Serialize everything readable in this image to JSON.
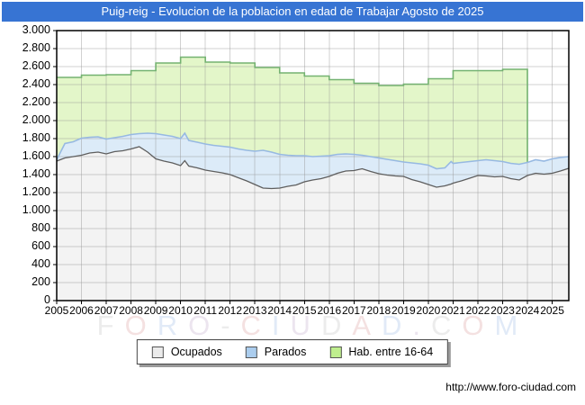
{
  "title_bar": {
    "text": "Puig-reig - Evolucion de la poblacion en edad de Trabajar Agosto de 2025",
    "bg": "#3774d3",
    "fg": "#ffffff"
  },
  "watermark": {
    "text": "FORO-CIUDAD.COM",
    "letter_colors": [
      "#ececec",
      "#f4e1e1",
      "#e1eaf7",
      "#ece5ef"
    ]
  },
  "footer": {
    "url": "http://www.foro-ciudad.com"
  },
  "legend": {
    "items": [
      {
        "label": "Ocupados",
        "swatch": "#ebebeb"
      },
      {
        "label": "Parados",
        "swatch": "#abcdee"
      },
      {
        "label": "Hab. entre 16-64",
        "swatch": "#bfee8e"
      }
    ]
  },
  "colors": {
    "grid": "rgba(145,145,145,0.42)",
    "plot_border": "#000000",
    "ocupados_fill": "#f3f3f3",
    "ocupados_line": "#5e5e5e",
    "parados_fill": "#dcebf8",
    "parados_line": "#97b9e2",
    "hab_fill": "#e3f6c9",
    "hab_line": "#74b271"
  },
  "chart_data": {
    "type": "area",
    "title": "Puig-reig - Evolucion de la poblacion en edad de Trabajar Agosto de 2025",
    "xlabel": "",
    "ylabel": "",
    "grid": true,
    "legend_position": "bottom",
    "x_axis": {
      "min": 2005,
      "max": 2025.67,
      "tick_years": [
        2005,
        2006,
        2007,
        2008,
        2009,
        2010,
        2011,
        2012,
        2013,
        2014,
        2015,
        2016,
        2017,
        2018,
        2019,
        2020,
        2021,
        2022,
        2023,
        2024,
        2025
      ]
    },
    "y_axis": {
      "min": 0,
      "max": 3000,
      "step": 200,
      "ticks": [
        {
          "v": 0,
          "label": "0"
        },
        {
          "v": 200,
          "label": "200"
        },
        {
          "v": 400,
          "label": "400"
        },
        {
          "v": 600,
          "label": "600"
        },
        {
          "v": 800,
          "label": "800"
        },
        {
          "v": 1000,
          "label": "1.000"
        },
        {
          "v": 1200,
          "label": "1.200"
        },
        {
          "v": 1400,
          "label": "1.400"
        },
        {
          "v": 1600,
          "label": "1.600"
        },
        {
          "v": 1800,
          "label": "1.800"
        },
        {
          "v": 2000,
          "label": "2.000"
        },
        {
          "v": 2200,
          "label": "2.200"
        },
        {
          "v": 2400,
          "label": "2.400"
        },
        {
          "v": 2600,
          "label": "2.600"
        },
        {
          "v": 2800,
          "label": "2.800"
        },
        {
          "v": 3000,
          "label": "3.000"
        }
      ]
    },
    "stacked_monthly": {
      "note": "Ocupados is the base area; Parados is stacked on top of Ocupados. Values are persons.",
      "t": [
        2005.0,
        2005.33,
        2005.67,
        2006.0,
        2006.33,
        2006.67,
        2007.0,
        2007.33,
        2007.67,
        2008.0,
        2008.33,
        2008.67,
        2009.0,
        2009.33,
        2009.67,
        2010.0,
        2010.17,
        2010.33,
        2010.67,
        2011.0,
        2011.33,
        2011.67,
        2012.0,
        2012.33,
        2012.67,
        2013.0,
        2013.33,
        2013.67,
        2014.0,
        2014.33,
        2014.67,
        2015.0,
        2015.33,
        2015.67,
        2016.0,
        2016.33,
        2016.67,
        2017.0,
        2017.33,
        2017.67,
        2018.0,
        2018.33,
        2018.67,
        2019.0,
        2019.33,
        2019.67,
        2020.0,
        2020.33,
        2020.67,
        2020.92,
        2021.0,
        2021.33,
        2021.67,
        2022.0,
        2022.33,
        2022.67,
        2023.0,
        2023.33,
        2023.67,
        2024.0,
        2024.33,
        2024.67,
        2025.0,
        2025.33,
        2025.67
      ],
      "ocupados": [
        1550,
        1585,
        1600,
        1615,
        1640,
        1650,
        1630,
        1655,
        1665,
        1685,
        1710,
        1650,
        1575,
        1550,
        1530,
        1500,
        1555,
        1495,
        1475,
        1450,
        1435,
        1420,
        1400,
        1365,
        1330,
        1290,
        1250,
        1245,
        1250,
        1270,
        1285,
        1320,
        1340,
        1355,
        1380,
        1415,
        1440,
        1445,
        1465,
        1435,
        1410,
        1395,
        1385,
        1380,
        1345,
        1320,
        1290,
        1260,
        1275,
        1295,
        1305,
        1330,
        1360,
        1390,
        1385,
        1375,
        1380,
        1355,
        1340,
        1390,
        1415,
        1405,
        1415,
        1440,
        1470
      ],
      "parados": [
        15,
        160,
        165,
        190,
        175,
        170,
        165,
        155,
        160,
        160,
        145,
        210,
        280,
        290,
        295,
        300,
        305,
        285,
        285,
        290,
        290,
        295,
        305,
        320,
        340,
        370,
        420,
        405,
        375,
        345,
        325,
        290,
        260,
        250,
        230,
        210,
        190,
        180,
        150,
        165,
        175,
        175,
        170,
        160,
        185,
        200,
        215,
        205,
        200,
        250,
        220,
        205,
        185,
        165,
        180,
        180,
        165,
        170,
        175,
        145,
        150,
        145,
        160,
        150,
        130
      ]
    },
    "hab_16_64_yearly": {
      "note": "Stepped yearly series; last value 2023, drawn through 2024.0 then drops.",
      "years": [
        2005,
        2006,
        2007,
        2008,
        2009,
        2010,
        2011,
        2012,
        2013,
        2014,
        2015,
        2016,
        2017,
        2018,
        2019,
        2020,
        2021,
        2022,
        2023
      ],
      "values": [
        2480,
        2505,
        2510,
        2555,
        2640,
        2705,
        2650,
        2640,
        2590,
        2530,
        2495,
        2455,
        2415,
        2390,
        2405,
        2465,
        2555,
        2555,
        2570
      ]
    },
    "series": [
      {
        "name": "Ocupados"
      },
      {
        "name": "Parados"
      },
      {
        "name": "Hab. entre 16-64"
      }
    ]
  }
}
